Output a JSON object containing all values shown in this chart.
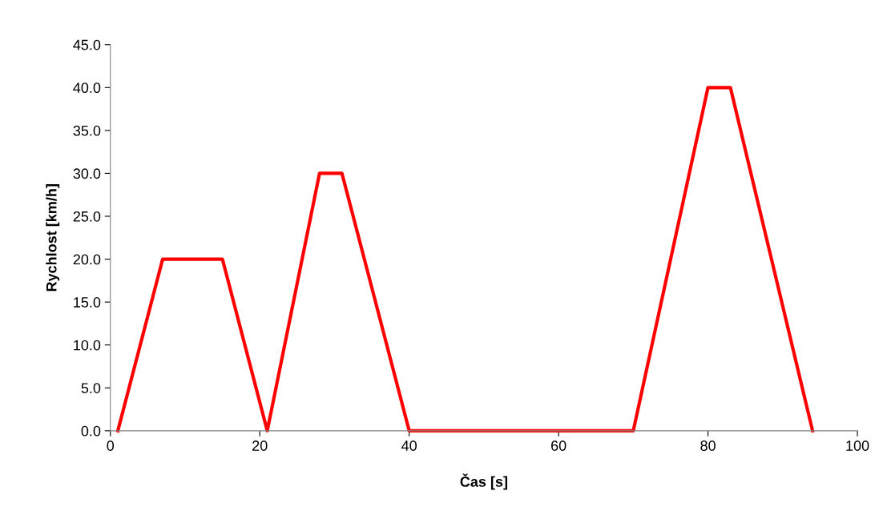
{
  "chart_data": {
    "type": "line",
    "xlabel": "Čas [s]",
    "ylabel": "Rychlost [km/h]",
    "x": [
      1,
      7,
      15,
      21,
      28,
      31,
      40,
      70,
      80,
      83,
      94
    ],
    "series": [
      {
        "color": "#ff0000",
        "values": [
          0,
          20,
          20,
          0,
          30,
          30,
          0,
          0,
          40,
          40,
          0
        ]
      }
    ],
    "xlim": [
      0,
      100
    ],
    "xticks": [
      0,
      20,
      40,
      60,
      80,
      100
    ],
    "ylim": [
      0,
      45
    ],
    "yticks": [
      {
        "value": 0,
        "label": "0.0"
      },
      {
        "value": 5,
        "label": "5.0"
      },
      {
        "value": 10,
        "label": "10.0"
      },
      {
        "value": 15,
        "label": "15.0"
      },
      {
        "value": 20,
        "label": "20.0"
      },
      {
        "value": 25,
        "label": "25.0"
      },
      {
        "value": 30,
        "label": "30.0"
      },
      {
        "value": 35,
        "label": "35.0"
      },
      {
        "value": 40,
        "label": "40.0"
      },
      {
        "value": 45,
        "label": "45.0"
      }
    ],
    "grid": false,
    "marker": "none",
    "line_style": "solid"
  }
}
